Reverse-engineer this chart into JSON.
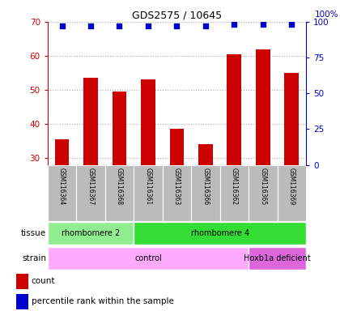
{
  "title": "GDS2575 / 10645",
  "samples": [
    "GSM116364",
    "GSM116367",
    "GSM116368",
    "GSM116361",
    "GSM116363",
    "GSM116366",
    "GSM116362",
    "GSM116365",
    "GSM116369"
  ],
  "counts": [
    35.5,
    53.5,
    49.5,
    53.0,
    38.5,
    34.0,
    60.5,
    62.0,
    55.0
  ],
  "percentile_ranks": [
    97,
    97,
    97,
    97,
    97,
    97,
    98,
    98,
    98
  ],
  "ylim_left": [
    28,
    70
  ],
  "ylim_right": [
    0,
    100
  ],
  "yticks_left": [
    30,
    40,
    50,
    60,
    70
  ],
  "yticks_right": [
    0,
    25,
    50,
    75,
    100
  ],
  "bar_color": "#cc0000",
  "dot_color": "#0000cc",
  "tissue_groups": [
    {
      "label": "rhombomere 2",
      "start": 0,
      "end": 3,
      "color": "#90ee90"
    },
    {
      "label": "rhombomere 4",
      "start": 3,
      "end": 9,
      "color": "#33dd33"
    }
  ],
  "strain_groups": [
    {
      "label": "control",
      "start": 0,
      "end": 7,
      "color": "#ffaaff"
    },
    {
      "label": "Hoxb1a deficient",
      "start": 7,
      "end": 9,
      "color": "#dd66dd"
    }
  ],
  "tissue_label": "tissue",
  "strain_label": "strain",
  "legend_count_label": "count",
  "legend_percentile_label": "percentile rank within the sample",
  "xticklabels_bg": "#bbbbbb",
  "grid_color": "#888888",
  "left_axis_color": "#cc0000",
  "right_axis_color": "#0000cc"
}
